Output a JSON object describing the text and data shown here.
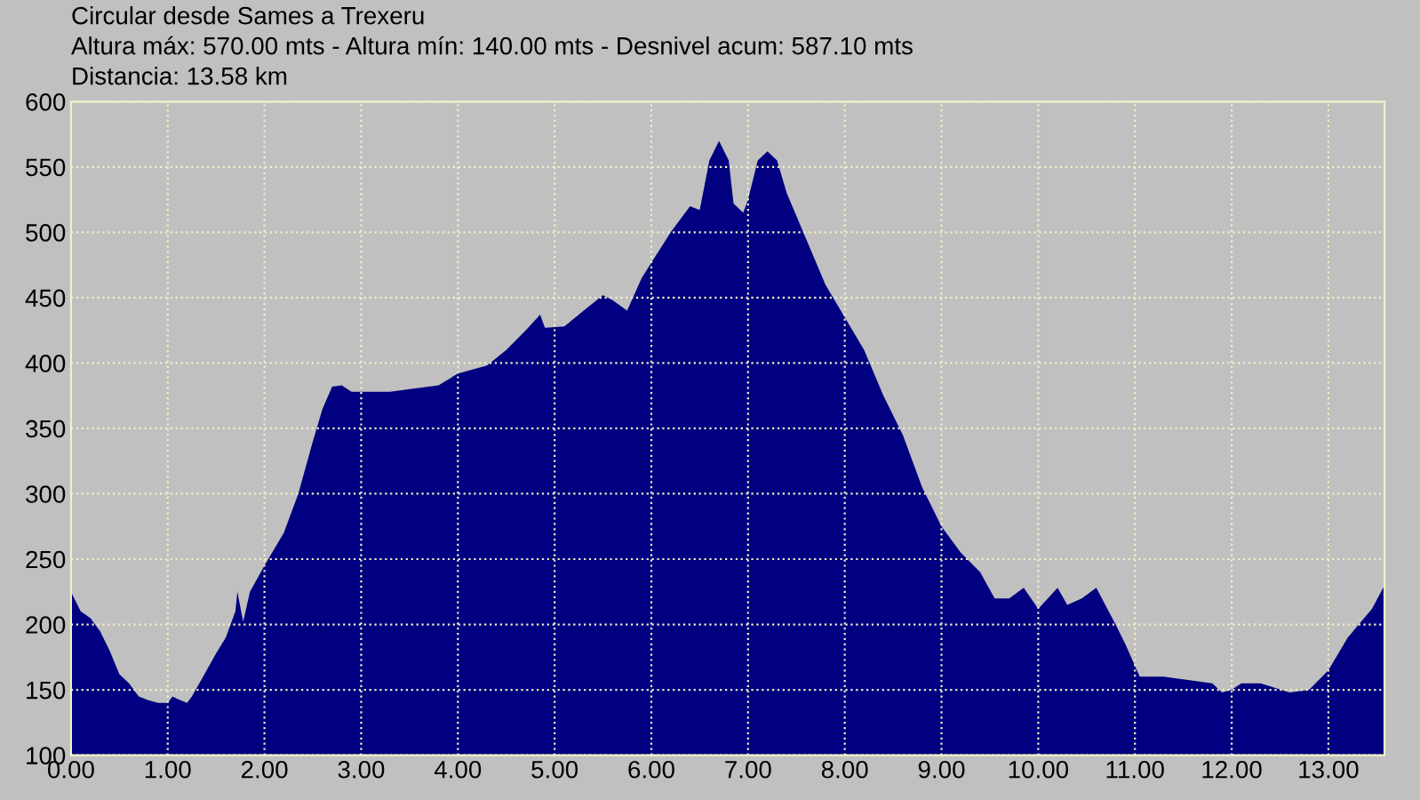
{
  "chart_data": {
    "type": "area",
    "title": "Circular desde Sames a Trexeru",
    "subtitle": "Altura máx: 570.00 mts - Altura mín: 140.00 mts - Desnivel acum: 587.10 mts",
    "annotations": [
      "Distancia: 13.58 km"
    ],
    "x": [
      0,
      0.1,
      0.2,
      0.3,
      0.4,
      0.5,
      0.6,
      0.7,
      0.8,
      0.9,
      1.0,
      1.05,
      1.1,
      1.2,
      1.25,
      1.35,
      1.5,
      1.6,
      1.7,
      1.72,
      1.78,
      1.85,
      2.0,
      2.2,
      2.35,
      2.5,
      2.6,
      2.7,
      2.8,
      2.9,
      3.0,
      3.3,
      3.5,
      3.8,
      4.0,
      4.3,
      4.5,
      4.7,
      4.85,
      4.9,
      5.1,
      5.3,
      5.5,
      5.6,
      5.75,
      5.9,
      6.2,
      6.4,
      6.5,
      6.6,
      6.7,
      6.8,
      6.85,
      6.95,
      7.0,
      7.1,
      7.2,
      7.3,
      7.4,
      7.6,
      7.8,
      8.0,
      8.2,
      8.4,
      8.6,
      8.8,
      9.0,
      9.2,
      9.4,
      9.55,
      9.7,
      9.85,
      10.0,
      10.2,
      10.3,
      10.45,
      10.6,
      10.8,
      10.9,
      11.05,
      11.3,
      11.5,
      11.8,
      11.9,
      12.0,
      12.1,
      12.3,
      12.6,
      12.8,
      13.0,
      13.2,
      13.45,
      13.58
    ],
    "series": [
      {
        "color": "#000080",
        "values": [
          225,
          210,
          205,
          195,
          180,
          162,
          155,
          145,
          142,
          140,
          140,
          145,
          143,
          140,
          145,
          158,
          178,
          190,
          210,
          225,
          202,
          225,
          245,
          270,
          300,
          340,
          365,
          382,
          383,
          378,
          378,
          378,
          380,
          383,
          392,
          398,
          410,
          425,
          437,
          427,
          428,
          440,
          452,
          448,
          440,
          465,
          500,
          520,
          517,
          555,
          570,
          555,
          522,
          515,
          525,
          555,
          562,
          555,
          530,
          495,
          460,
          435,
          410,
          375,
          345,
          305,
          275,
          255,
          240,
          220,
          220,
          228,
          212,
          228,
          215,
          220,
          228,
          200,
          185,
          160,
          160,
          158,
          155,
          148,
          150,
          155,
          155,
          148,
          150,
          165,
          190,
          212,
          230
        ]
      }
    ],
    "xlim": [
      0,
      13.58
    ],
    "ylim": [
      100,
      600
    ],
    "xticks": [
      {
        "value": 0,
        "label": "0.00"
      },
      {
        "value": 1,
        "label": "1.00"
      },
      {
        "value": 2,
        "label": "2.00"
      },
      {
        "value": 3,
        "label": "3.00"
      },
      {
        "value": 4,
        "label": "4.00"
      },
      {
        "value": 5,
        "label": "5.00"
      },
      {
        "value": 6,
        "label": "6.00"
      },
      {
        "value": 7,
        "label": "7.00"
      },
      {
        "value": 8,
        "label": "8.00"
      },
      {
        "value": 9,
        "label": "9.00"
      },
      {
        "value": 10,
        "label": "10.00"
      },
      {
        "value": 11,
        "label": "11.00"
      },
      {
        "value": 12,
        "label": "12.00"
      },
      {
        "value": 13,
        "label": "13.00"
      }
    ],
    "yticks": [
      100,
      150,
      200,
      250,
      300,
      350,
      400,
      450,
      500,
      550,
      600
    ],
    "grid": true,
    "line_style": "dotted"
  }
}
